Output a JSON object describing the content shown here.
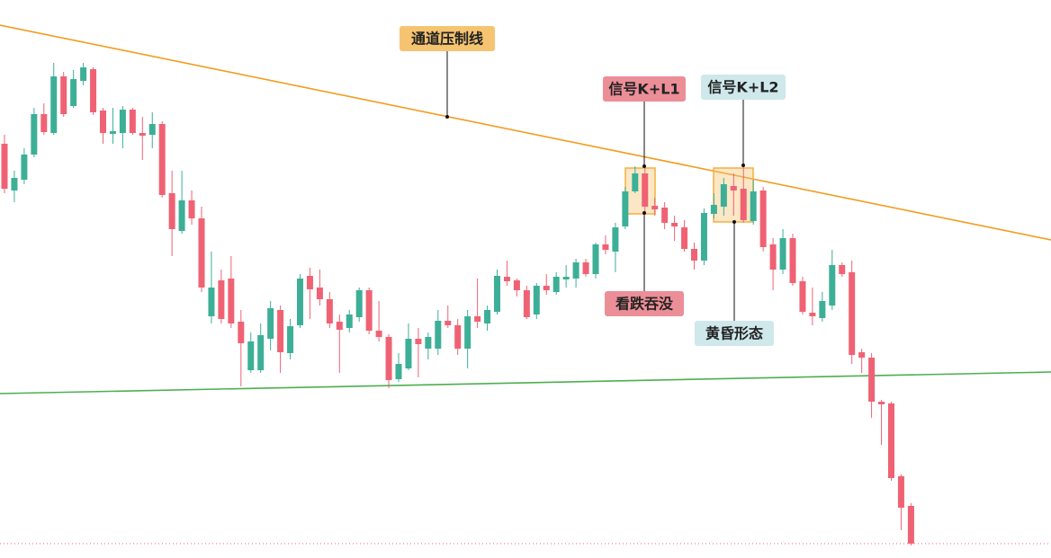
{
  "chart_data": {
    "type": "candlestick",
    "up_color": "#3daf97",
    "down_color": "#ef6274",
    "ylim": [
      0,
      621
    ],
    "open": [
      461,
      409,
      421,
      449,
      494,
      473,
      536,
      503,
      531,
      544,
      498,
      472,
      473,
      499,
      473,
      471,
      483,
      406,
      364,
      398,
      378,
      269,
      309,
      311,
      263,
      209,
      209,
      244,
      276,
      228,
      259,
      314,
      301,
      288,
      263,
      256,
      268,
      298,
      253,
      246,
      199,
      211,
      244,
      233,
      233,
      264,
      259,
      233,
      269,
      261,
      274,
      313,
      309,
      298,
      271,
      303,
      296,
      310,
      311,
      329,
      316,
      349,
      341,
      369,
      408,
      428,
      392,
      390,
      373,
      368,
      344,
      331,
      383,
      391,
      414,
      411,
      375,
      409,
      349,
      321,
      356,
      308,
      273,
      267,
      281,
      326,
      318,
      229,
      223,
      174,
      172,
      91,
      58
    ],
    "high": [
      471,
      431,
      456,
      501,
      506,
      551,
      541,
      543,
      551,
      546,
      501,
      501,
      503,
      501,
      491,
      496,
      486,
      431,
      431,
      409,
      391,
      341,
      321,
      336,
      276,
      251,
      261,
      286,
      281,
      266,
      316,
      323,
      321,
      296,
      271,
      276,
      301,
      301,
      286,
      249,
      228,
      261,
      256,
      251,
      276,
      281,
      266,
      276,
      311,
      281,
      321,
      331,
      311,
      303,
      306,
      316,
      318,
      326,
      333,
      333,
      351,
      359,
      373,
      413,
      436,
      436,
      401,
      396,
      381,
      376,
      351,
      389,
      406,
      423,
      428,
      438,
      421,
      413,
      356,
      366,
      361,
      313,
      301,
      296,
      343,
      329,
      331,
      233,
      228,
      176,
      174,
      93,
      61
    ],
    "low": [
      406,
      396,
      416,
      446,
      471,
      471,
      491,
      501,
      526,
      493,
      461,
      461,
      456,
      471,
      443,
      456,
      401,
      336,
      361,
      371,
      296,
      261,
      261,
      256,
      191,
      206,
      206,
      231,
      206,
      221,
      256,
      266,
      281,
      256,
      206,
      251,
      263,
      249,
      241,
      189,
      196,
      209,
      201,
      221,
      226,
      256,
      226,
      211,
      256,
      253,
      271,
      303,
      291,
      266,
      266,
      293,
      293,
      301,
      301,
      313,
      311,
      338,
      318,
      366,
      406,
      383,
      381,
      366,
      353,
      341,
      321,
      326,
      378,
      381,
      381,
      373,
      371,
      341,
      298,
      316,
      303,
      271,
      259,
      263,
      276,
      313,
      216,
      206,
      156,
      126,
      86,
      31,
      14
    ],
    "close": [
      411,
      423,
      449,
      494,
      474,
      536,
      494,
      533,
      546,
      496,
      473,
      475,
      499,
      473,
      470,
      483,
      404,
      366,
      398,
      378,
      301,
      301,
      266,
      261,
      239,
      241,
      248,
      278,
      229,
      258,
      311,
      299,
      288,
      261,
      254,
      271,
      298,
      253,
      246,
      198,
      216,
      244,
      238,
      246,
      264,
      259,
      233,
      269,
      263,
      276,
      314,
      308,
      298,
      268,
      303,
      298,
      313,
      313,
      329,
      316,
      349,
      343,
      368,
      408,
      428,
      391,
      388,
      373,
      369,
      344,
      331,
      384,
      393,
      416,
      409,
      376,
      408,
      346,
      321,
      356,
      306,
      274,
      269,
      286,
      326,
      316,
      226,
      223,
      174,
      171,
      89,
      56,
      16
    ],
    "annotations": [
      {
        "text": "通道压制线",
        "color": "#f6c470"
      },
      {
        "text": "信号K+L1",
        "color": "#ec8e98"
      },
      {
        "text": "信号K+L2",
        "color": "#cfe8ec"
      },
      {
        "text": "看跌吞没",
        "color": "#ec8e98"
      },
      {
        "text": "黄昏形态",
        "color": "#cfe8ec"
      }
    ]
  }
}
